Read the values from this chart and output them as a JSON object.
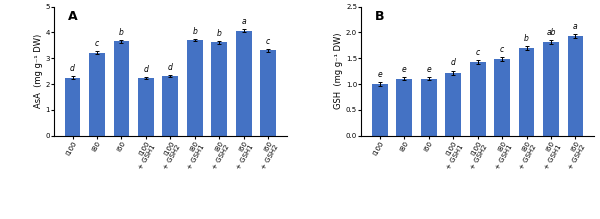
{
  "chart_A": {
    "title": "A",
    "ylabel": "AsA  (mg g⁻¹ DW)",
    "ylim": [
      0,
      5
    ],
    "yticks": [
      0,
      1,
      2,
      3,
      4,
      5
    ],
    "categories": [
      "I100",
      "I80",
      "I60",
      "I100\n+ GSH1",
      "I100\n+ GSH2",
      "I80\n+ GSH1",
      "I80\n+ GSH2",
      "I60\n+ GSH1",
      "I60\n+ GSH2"
    ],
    "values": [
      2.25,
      3.22,
      3.65,
      2.24,
      2.3,
      3.7,
      3.62,
      4.07,
      3.31
    ],
    "errors": [
      0.05,
      0.05,
      0.05,
      0.04,
      0.04,
      0.05,
      0.05,
      0.05,
      0.05
    ],
    "letters": [
      "d",
      "c",
      "b",
      "d",
      "d",
      "b",
      "b",
      "a",
      "c"
    ],
    "bar_color": "#4472C4"
  },
  "chart_B": {
    "title": "B",
    "ylabel": "GSH  (mg g⁻¹ DW)",
    "ylim": [
      0,
      2.5
    ],
    "yticks": [
      0,
      0.5,
      1.0,
      1.5,
      2.0,
      2.5
    ],
    "categories": [
      "I100",
      "I80",
      "I60",
      "I100\n+ GSH1",
      "I100\n+ GSH2",
      "I80\n+ GSH1",
      "I80\n+ GSH2",
      "I60\n+ GSH1",
      "I60\n+ GSH2"
    ],
    "values": [
      1.0,
      1.1,
      1.1,
      1.22,
      1.43,
      1.48,
      1.7,
      1.81,
      1.93
    ],
    "errors": [
      0.04,
      0.03,
      0.03,
      0.04,
      0.04,
      0.04,
      0.04,
      0.04,
      0.04
    ],
    "letters": [
      "e",
      "e",
      "e",
      "d",
      "c",
      "c",
      "b",
      "ab",
      "a"
    ],
    "bar_color": "#4472C4"
  },
  "fig_width": 6.0,
  "fig_height": 2.19,
  "dpi": 100,
  "label_rotation": 60,
  "tick_fontsize": 5.0,
  "ylabel_fontsize": 6.0,
  "letter_fontsize": 5.5,
  "panel_fontsize": 9,
  "bar_width": 0.65
}
